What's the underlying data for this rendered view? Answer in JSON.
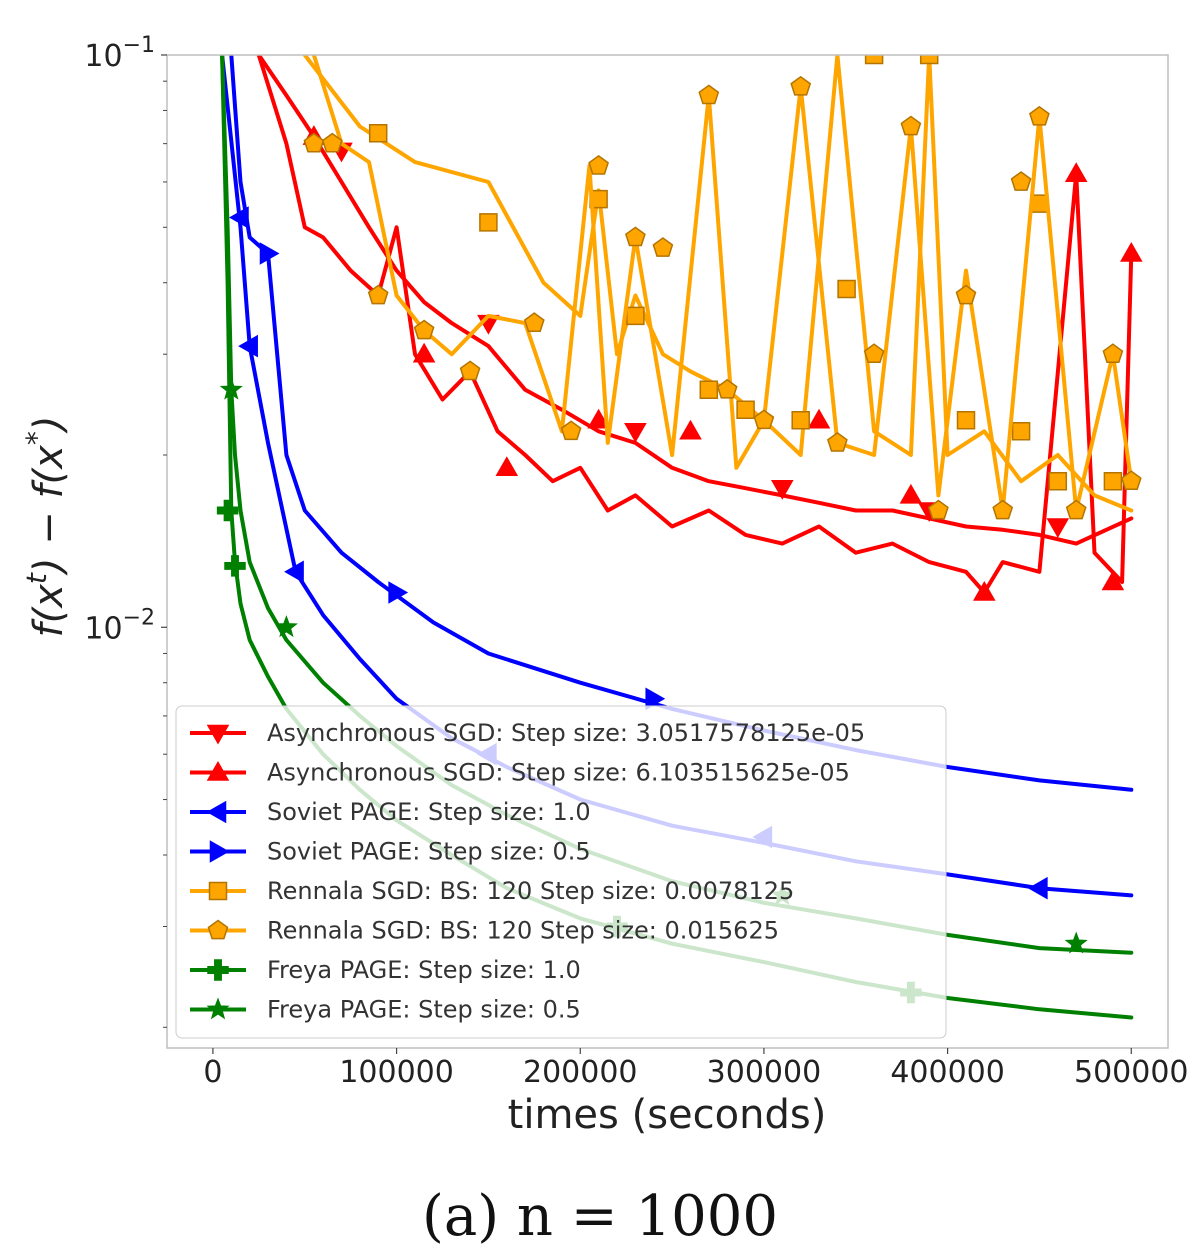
{
  "chart_data": {
    "type": "line",
    "title": "",
    "xlabel": "times (seconds)",
    "ylabel": "f(x^t) − f(x^*)",
    "caption": "(a) n = 1000",
    "xlim": [
      -25000,
      520000
    ],
    "ylim": [
      0.00184,
      0.1
    ],
    "yscale": "log",
    "grid": false,
    "legend_position": "lower-left",
    "x_ticks": [
      0,
      100000,
      200000,
      300000,
      400000,
      500000
    ],
    "x_tick_labels": [
      "0",
      "100000",
      "200000",
      "300000",
      "400000",
      "500000"
    ],
    "y_ticks": [
      0.01,
      0.1
    ],
    "y_tick_labels": [
      {
        "base": "10",
        "exp": "−2"
      },
      {
        "base": "10",
        "exp": "−1"
      }
    ],
    "series": [
      {
        "name": "Asynchronous SGD: Step size: 3.0517578125e-05",
        "color": "#ff0000",
        "marker": "triangle-down",
        "x": [
          25000,
          40000,
          55000,
          70000,
          85000,
          100000,
          115000,
          130000,
          150000,
          170000,
          190000,
          210000,
          230000,
          250000,
          270000,
          290000,
          310000,
          330000,
          350000,
          370000,
          390000,
          410000,
          430000,
          450000,
          470000,
          500000
        ],
        "y": [
          0.1,
          0.085,
          0.072,
          0.06,
          0.05,
          0.042,
          0.037,
          0.034,
          0.031,
          0.026,
          0.024,
          0.022,
          0.021,
          0.019,
          0.018,
          0.0175,
          0.017,
          0.0165,
          0.016,
          0.016,
          0.0155,
          0.015,
          0.0148,
          0.0145,
          0.014,
          0.0155
        ],
        "marker_x": [
          70000,
          150000,
          230000,
          310000,
          390000,
          460000
        ],
        "marker_y": [
          0.068,
          0.034,
          0.022,
          0.0175,
          0.016,
          0.015
        ]
      },
      {
        "name": "Asynchronous SGD: Step size: 6.103515625e-05",
        "color": "#ff0000",
        "marker": "triangle-up",
        "x": [
          25000,
          40000,
          50000,
          60000,
          75000,
          90000,
          100000,
          110000,
          125000,
          140000,
          155000,
          170000,
          185000,
          200000,
          215000,
          230000,
          250000,
          270000,
          290000,
          310000,
          330000,
          350000,
          370000,
          390000,
          410000,
          420000,
          430000,
          450000,
          470000,
          480000,
          495000,
          500000
        ],
        "y": [
          0.1,
          0.07,
          0.05,
          0.048,
          0.042,
          0.038,
          0.05,
          0.03,
          0.025,
          0.028,
          0.022,
          0.02,
          0.018,
          0.019,
          0.016,
          0.017,
          0.015,
          0.016,
          0.0145,
          0.014,
          0.015,
          0.0135,
          0.014,
          0.013,
          0.0125,
          0.0115,
          0.013,
          0.0125,
          0.062,
          0.0135,
          0.012,
          0.045
        ],
        "marker_x": [
          55000,
          115000,
          160000,
          210000,
          260000,
          330000,
          380000,
          420000,
          470000,
          490000,
          500000
        ],
        "marker_y": [
          0.072,
          0.03,
          0.019,
          0.023,
          0.022,
          0.023,
          0.017,
          0.0115,
          0.062,
          0.012,
          0.045
        ]
      },
      {
        "name": "Soviet PAGE: Step size: 1.0",
        "color": "#0000ff",
        "marker": "triangle-left",
        "x": [
          5000,
          15000,
          20000,
          30000,
          45000,
          60000,
          80000,
          100000,
          130000,
          160000,
          200000,
          250000,
          300000,
          350000,
          400000,
          450000,
          500000
        ],
        "y": [
          0.1,
          0.05,
          0.031,
          0.021,
          0.0125,
          0.0105,
          0.0088,
          0.0075,
          0.0064,
          0.0057,
          0.005,
          0.0045,
          0.0042,
          0.0039,
          0.0037,
          0.0035,
          0.0034
        ],
        "marker_x": [
          15000,
          20000,
          45000,
          150000,
          300000,
          450000
        ],
        "marker_y": [
          0.052,
          0.031,
          0.0125,
          0.006,
          0.0043,
          0.0035
        ]
      },
      {
        "name": "Soviet PAGE: Step size: 0.5",
        "color": "#0000ff",
        "marker": "triangle-right",
        "x": [
          10000,
          15000,
          20000,
          30000,
          40000,
          50000,
          70000,
          90000,
          120000,
          150000,
          200000,
          250000,
          300000,
          350000,
          400000,
          450000,
          500000
        ],
        "y": [
          0.1,
          0.06,
          0.048,
          0.045,
          0.02,
          0.016,
          0.0135,
          0.012,
          0.0102,
          0.009,
          0.008,
          0.0072,
          0.0066,
          0.0061,
          0.0057,
          0.0054,
          0.0052
        ],
        "marker_x": [
          30000,
          100000,
          240000
        ],
        "marker_y": [
          0.045,
          0.0115,
          0.0075
        ]
      },
      {
        "name": "Rennala SGD: BS: 120 Step size: 0.0078125",
        "color": "#ffa500",
        "marker": "square",
        "x": [
          50000,
          80000,
          110000,
          150000,
          180000,
          200000,
          210000,
          220000,
          230000,
          245000,
          260000,
          280000,
          300000,
          320000,
          340000,
          360000,
          380000,
          390000,
          400000,
          420000,
          440000,
          460000,
          480000,
          500000
        ],
        "y": [
          0.1,
          0.075,
          0.065,
          0.06,
          0.04,
          0.035,
          0.058,
          0.03,
          0.038,
          0.03,
          0.028,
          0.026,
          0.023,
          0.02,
          0.1,
          0.022,
          0.02,
          0.1,
          0.02,
          0.022,
          0.018,
          0.02,
          0.017,
          0.016
        ],
        "marker_x": [
          90000,
          150000,
          210000,
          230000,
          270000,
          290000,
          320000,
          345000,
          360000,
          390000,
          410000,
          440000,
          450000,
          460000,
          490000
        ],
        "marker_y": [
          0.073,
          0.051,
          0.056,
          0.035,
          0.026,
          0.024,
          0.023,
          0.039,
          0.1,
          0.1,
          0.023,
          0.022,
          0.055,
          0.018,
          0.018
        ]
      },
      {
        "name": "Rennala SGD: BS: 120 Step size: 0.015625",
        "color": "#ffa500",
        "marker": "pentagon",
        "x": [
          55000,
          70000,
          85000,
          100000,
          115000,
          130000,
          150000,
          170000,
          190000,
          205000,
          215000,
          230000,
          250000,
          270000,
          285000,
          300000,
          320000,
          340000,
          360000,
          380000,
          395000,
          410000,
          430000,
          450000,
          470000,
          490000,
          500000
        ],
        "y": [
          0.1,
          0.07,
          0.065,
          0.038,
          0.033,
          0.03,
          0.035,
          0.034,
          0.022,
          0.064,
          0.021,
          0.048,
          0.02,
          0.085,
          0.019,
          0.023,
          0.088,
          0.021,
          0.02,
          0.075,
          0.017,
          0.042,
          0.016,
          0.078,
          0.016,
          0.03,
          0.018
        ],
        "marker_x": [
          55000,
          65000,
          90000,
          115000,
          140000,
          175000,
          195000,
          210000,
          230000,
          245000,
          270000,
          280000,
          300000,
          320000,
          340000,
          360000,
          380000,
          395000,
          410000,
          430000,
          440000,
          450000,
          470000,
          490000,
          500000
        ],
        "marker_y": [
          0.07,
          0.07,
          0.038,
          0.033,
          0.028,
          0.034,
          0.022,
          0.064,
          0.048,
          0.046,
          0.085,
          0.026,
          0.023,
          0.088,
          0.021,
          0.03,
          0.075,
          0.016,
          0.038,
          0.016,
          0.06,
          0.078,
          0.016,
          0.03,
          0.018
        ]
      },
      {
        "name": "Freya PAGE: Step size: 1.0",
        "color": "#008000",
        "marker": "plus",
        "x": [
          5000,
          8000,
          10000,
          12000,
          15000,
          20000,
          30000,
          40000,
          60000,
          80000,
          100000,
          130000,
          160000,
          200000,
          250000,
          300000,
          350000,
          400000,
          450000,
          500000
        ],
        "y": [
          0.1,
          0.04,
          0.016,
          0.013,
          0.011,
          0.0095,
          0.0082,
          0.0072,
          0.006,
          0.0052,
          0.0046,
          0.004,
          0.0035,
          0.0031,
          0.0028,
          0.0026,
          0.0024,
          0.00225,
          0.00215,
          0.00208
        ],
        "marker_x": [
          8000,
          12000,
          220000,
          380000
        ],
        "marker_y": [
          0.016,
          0.0128,
          0.003,
          0.0023
        ]
      },
      {
        "name": "Freya PAGE: Step size: 0.5",
        "color": "#008000",
        "marker": "star",
        "x": [
          5000,
          8000,
          10000,
          12000,
          15000,
          20000,
          30000,
          40000,
          60000,
          80000,
          100000,
          130000,
          160000,
          200000,
          250000,
          300000,
          350000,
          400000,
          450000,
          500000
        ],
        "y": [
          0.1,
          0.05,
          0.026,
          0.02,
          0.016,
          0.013,
          0.0108,
          0.0095,
          0.008,
          0.007,
          0.0062,
          0.0053,
          0.0047,
          0.0041,
          0.0036,
          0.0033,
          0.0031,
          0.0029,
          0.00275,
          0.0027
        ],
        "marker_x": [
          10000,
          40000,
          310000,
          470000
        ],
        "marker_y": [
          0.026,
          0.01,
          0.0034,
          0.0028
        ]
      }
    ]
  }
}
